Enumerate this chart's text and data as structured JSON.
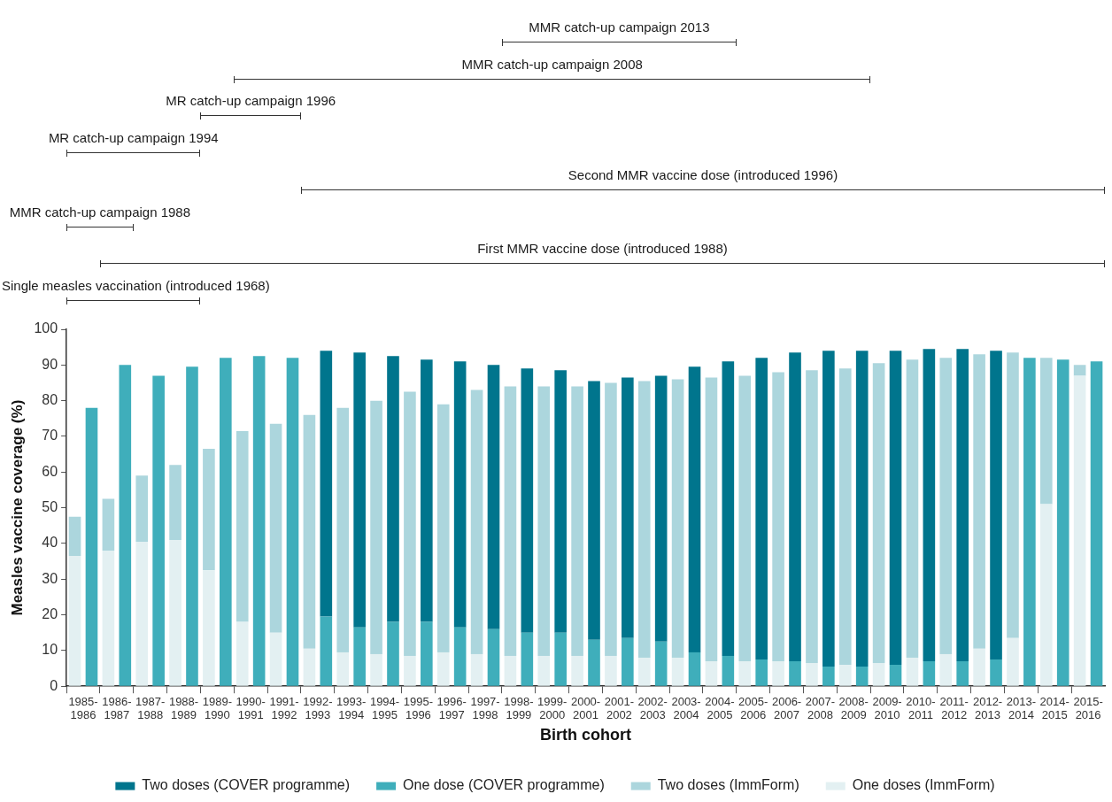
{
  "chart_data": {
    "type": "bar",
    "stacked": true,
    "xlabel": "Birth cohort",
    "ylabel": "Measles vaccine coverage (%)",
    "categories": [
      "1985-1986",
      null,
      "1986-1987",
      null,
      "1987-1988",
      null,
      "1988-1989",
      null,
      "1989-1990",
      null,
      "1990-1991",
      null,
      "1991-1992",
      null,
      "1992-1993",
      null,
      "1993-1994",
      null,
      "1994-1995",
      null,
      "1995-1996",
      null,
      "1996-1997",
      null,
      "1997-1998",
      null,
      "1998-1999",
      null,
      "1999-2000",
      null,
      "2000-2001",
      null,
      "2001-2002",
      null,
      "2002-2003",
      null,
      "2003-2004",
      null,
      "2004-2005",
      null,
      "2005-2006",
      null,
      "2006-2007",
      null,
      "2007-2008",
      null,
      "2008-2009",
      null,
      "2009-2010",
      null,
      "2010-2011",
      null,
      "2011-2012",
      null,
      "2012-2013",
      null,
      "2013-2014",
      null,
      "2014-2015",
      null,
      "2015-2016",
      null
    ],
    "series": [
      {
        "name": "One doses (ImmForm)",
        "color": "#e3f0f2",
        "values": [
          36.5,
          null,
          38,
          null,
          40.5,
          null,
          41,
          null,
          32.5,
          null,
          18,
          null,
          15,
          null,
          10.5,
          null,
          9.5,
          null,
          9,
          null,
          8.5,
          null,
          9.5,
          null,
          9,
          null,
          8.5,
          null,
          8.5,
          null,
          8.5,
          null,
          8.5,
          null,
          8,
          null,
          8,
          null,
          7,
          null,
          7,
          null,
          7,
          null,
          6.5,
          null,
          6,
          null,
          6.5,
          null,
          8,
          null,
          9,
          null,
          10.5,
          null,
          13.5,
          null,
          51,
          null,
          87,
          null
        ]
      },
      {
        "name": "Two doses (ImmForm)",
        "color": "#acd6dd",
        "values": [
          11,
          null,
          14.5,
          null,
          18.5,
          null,
          21,
          null,
          34,
          null,
          53.5,
          null,
          58.5,
          null,
          65.5,
          null,
          68.5,
          null,
          71,
          null,
          74,
          null,
          69.5,
          null,
          74,
          null,
          75.5,
          null,
          75.5,
          null,
          75.5,
          null,
          76.5,
          null,
          77.5,
          null,
          78,
          null,
          79.5,
          null,
          80,
          null,
          81,
          null,
          82,
          null,
          83,
          null,
          84,
          null,
          83.5,
          null,
          83,
          null,
          82.5,
          null,
          80,
          null,
          41,
          null,
          3,
          null
        ]
      },
      {
        "name": "One dose (COVER programme)",
        "color": "#3faebb",
        "values": [
          null,
          78,
          null,
          90,
          null,
          87,
          null,
          89.5,
          null,
          92,
          null,
          92.5,
          null,
          92,
          null,
          19.5,
          null,
          16.5,
          null,
          18,
          null,
          18,
          null,
          16.5,
          null,
          16,
          null,
          15,
          null,
          15,
          null,
          13,
          null,
          13.5,
          null,
          12.5,
          null,
          9.5,
          null,
          8.5,
          null,
          7.5,
          null,
          7,
          null,
          5.5,
          null,
          5.5,
          null,
          6,
          null,
          7,
          null,
          7,
          null,
          7.5,
          null,
          92,
          null,
          91.5,
          null,
          91
        ]
      },
      {
        "name": "Two doses (COVER programme)",
        "color": "#00758d",
        "values": [
          null,
          null,
          null,
          null,
          null,
          null,
          null,
          null,
          null,
          null,
          null,
          null,
          null,
          null,
          null,
          74.5,
          null,
          77,
          null,
          74.5,
          null,
          73.5,
          null,
          74.5,
          null,
          74,
          null,
          74,
          null,
          73.5,
          null,
          72.5,
          null,
          73,
          null,
          74.5,
          null,
          80,
          null,
          82.5,
          null,
          84.5,
          null,
          86.5,
          null,
          88.5,
          null,
          88.5,
          null,
          88,
          null,
          87.5,
          null,
          87.5,
          null,
          86.5,
          null,
          null,
          null,
          null,
          null,
          null
        ]
      }
    ],
    "ylim": [
      0,
      100
    ],
    "yticks": [
      0,
      10,
      20,
      30,
      40,
      50,
      60,
      70,
      80,
      90,
      100
    ],
    "legend": "bottom",
    "annotations": [
      "MMR catch-up campaign 2013",
      "MMR catch-up campaign 2008",
      "MR catch-up campaign 1996",
      "MR catch-up campaign 1994",
      "Second MMR vaccine dose (introduced 1996)",
      "MMR catch-up campaign 1988",
      "First MMR vaccine dose (introduced 1988)",
      "Single measles vaccination (introduced 1968)"
    ]
  }
}
